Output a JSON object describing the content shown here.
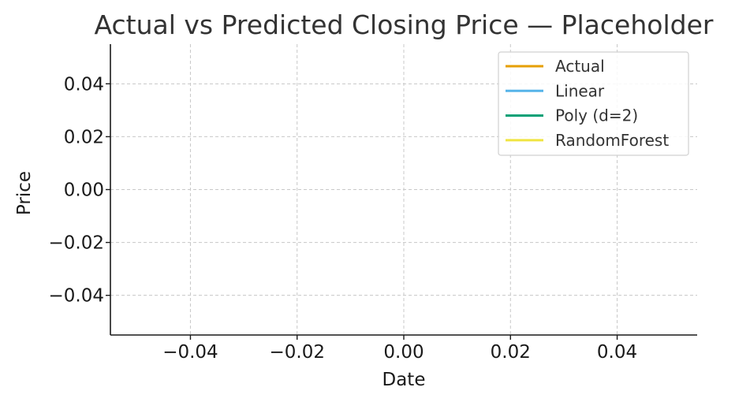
{
  "chart_data": {
    "type": "line",
    "title": "Actual vs Predicted Closing Price — Placeholder",
    "xlabel": "Date",
    "ylabel": "Price",
    "xlim": [
      -0.055,
      0.055
    ],
    "ylim": [
      -0.055,
      0.055
    ],
    "x_ticks": [
      -0.04,
      -0.02,
      0.0,
      0.02,
      0.04
    ],
    "x_tick_labels": [
      "−0.04",
      "−0.02",
      "0.00",
      "0.02",
      "0.04"
    ],
    "y_ticks": [
      0.04,
      0.02,
      0.0,
      -0.02,
      -0.04
    ],
    "y_tick_labels": [
      "0.04",
      "0.02",
      "0.00",
      "−0.02",
      "−0.04"
    ],
    "grid": true,
    "legend_position": "top-right",
    "series": [
      {
        "name": "Actual",
        "color": "#E69F00",
        "x": [],
        "y": []
      },
      {
        "name": "Linear",
        "color": "#56B4E9",
        "x": [],
        "y": []
      },
      {
        "name": "Poly (d=2)",
        "color": "#009E73",
        "x": [],
        "y": []
      },
      {
        "name": "RandomForest",
        "color": "#F0E442",
        "x": [],
        "y": []
      }
    ]
  }
}
